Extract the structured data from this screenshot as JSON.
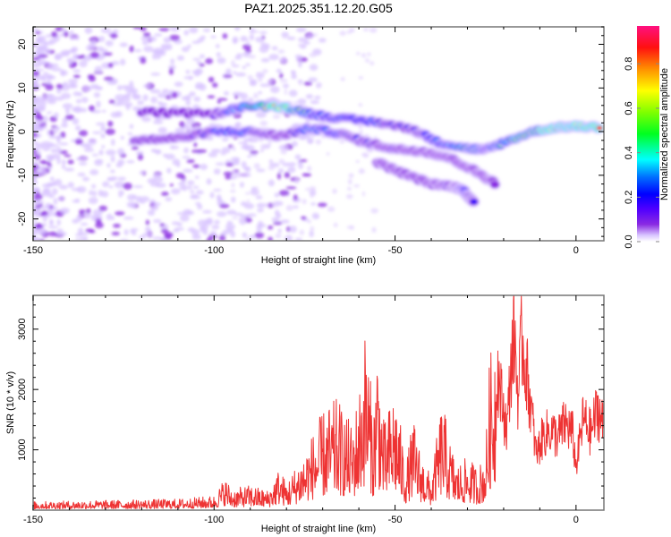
{
  "title": "PAZ1.2025.351.12.20.G05",
  "chart_data": [
    {
      "type": "heatmap",
      "name": "spectrogram",
      "title": "PAZ1.2025.351.12.20.G05",
      "xlabel": "Height of straight line (km)",
      "ylabel": "Frequency (Hz)",
      "xlim": [
        -150,
        7.7
      ],
      "ylim": [
        -25,
        24
      ],
      "xticks": [
        -150,
        -100,
        -50,
        0
      ],
      "xtick_labels": [
        "-150",
        "-100",
        "-50",
        "0"
      ],
      "yticks": [
        -20,
        -10,
        0,
        10,
        20
      ],
      "ytick_labels": [
        "-20",
        "-10",
        "0",
        "10",
        "20"
      ],
      "colorbar": {
        "label": "Normalized spectral amplitude",
        "range": [
          0.0,
          0.97
        ],
        "ticks": [
          0.0,
          0.2,
          0.4,
          0.6,
          0.8
        ],
        "tick_labels": [
          "0.0",
          "0.2",
          "0.4",
          "0.6",
          "0.8"
        ],
        "colors": [
          "#ffffff",
          "#e6d5ff",
          "#8a2be2",
          "#5000ff",
          "#0000ff",
          "#0080ff",
          "#00ffff",
          "#00ff40",
          "#60ff00",
          "#ffff00",
          "#ff9000",
          "#ff2000",
          "#ff1060"
        ]
      },
      "features": [
        {
          "name": "main-trace",
          "points": [
            [
              -120,
              4.5
            ],
            [
              -100,
              4.0
            ],
            [
              -92,
              5.8
            ],
            [
              -81,
              5.7
            ],
            [
              -73,
              4.0
            ],
            [
              -65,
              3.0
            ],
            [
              -55,
              2.2
            ],
            [
              -45,
              0.5
            ],
            [
              -38,
              -2.5
            ],
            [
              -30,
              -3.8
            ],
            [
              -25,
              -4.2
            ],
            [
              -20,
              -2.5
            ],
            [
              -12,
              0.0
            ],
            [
              -5,
              1.0
            ],
            [
              0,
              1.2
            ],
            [
              7,
              1.0
            ]
          ],
          "amplitudes": [
            0.15,
            0.2,
            0.45,
            0.9,
            0.35,
            0.3,
            0.3,
            0.25,
            0.35,
            0.55,
            0.4,
            0.55,
            0.7,
            0.9,
            0.92,
            0.85
          ]
        },
        {
          "name": "lower-trace",
          "points": [
            [
              -122,
              -2.0
            ],
            [
              -110,
              -1.5
            ],
            [
              -100,
              0.0
            ],
            [
              -90,
              0.0
            ],
            [
              -82,
              -1.0
            ],
            [
              -73,
              0.8
            ],
            [
              -65,
              -0.5
            ],
            [
              -58,
              -2.5
            ],
            [
              -50,
              -4.0
            ],
            [
              -42,
              -4.5
            ],
            [
              -35,
              -6.0
            ],
            [
              -28,
              -9.0
            ],
            [
              -22,
              -12.0
            ]
          ],
          "amplitudes": [
            0.1,
            0.15,
            0.3,
            0.3,
            0.15,
            0.4,
            0.3,
            0.25,
            0.2,
            0.15,
            0.1,
            0.1,
            0.05
          ]
        },
        {
          "name": "secondary-trace",
          "points": [
            [
              -55,
              -7.0
            ],
            [
              -48,
              -9.5
            ],
            [
              -40,
              -12.0
            ],
            [
              -34,
              -12.5
            ],
            [
              -31,
              -13.5
            ],
            [
              -28,
              -16.5
            ]
          ],
          "amplitudes": [
            0.1,
            0.1,
            0.15,
            0.25,
            0.35,
            0.2
          ]
        }
      ]
    },
    {
      "type": "line",
      "name": "snr",
      "xlabel": "Height of straight line (km)",
      "ylabel": "SNR (10 * v/v)",
      "xlim": [
        -150,
        7.7
      ],
      "ylim": [
        0,
        3560
      ],
      "xticks": [
        -150,
        -100,
        -50,
        0
      ],
      "xtick_labels": [
        "-150",
        "-100",
        "-50",
        "0"
      ],
      "yticks": [
        1000,
        2000,
        3000
      ],
      "ytick_labels": [
        "1000",
        "2000",
        "3000"
      ],
      "color": "#ee3333",
      "series": [
        {
          "name": "SNR envelope",
          "x": [
            -150,
            -140,
            -130,
            -120,
            -110,
            -100,
            -97,
            -95,
            -90,
            -85,
            -82,
            -80,
            -75,
            -70,
            -66,
            -62,
            -60,
            -58,
            -56,
            -55,
            -53,
            -50,
            -47,
            -45,
            -43,
            -40,
            -37,
            -35,
            -33,
            -30,
            -27,
            -25,
            -24,
            -22,
            -20,
            -19,
            -18,
            -17,
            -16,
            -15,
            -13,
            -11,
            -9,
            -7,
            -5,
            -3,
            -1,
            0,
            2,
            4,
            6,
            7.7
          ],
          "y": [
            130,
            140,
            150,
            160,
            170,
            220,
            500,
            320,
            380,
            300,
            650,
            420,
            900,
            1500,
            1700,
            1300,
            1800,
            2900,
            1400,
            2700,
            1300,
            1900,
            700,
            1400,
            900,
            500,
            1700,
            1100,
            700,
            800,
            650,
            900,
            2200,
            3050,
            2000,
            1700,
            3000,
            3600,
            2300,
            3550,
            2500,
            1150,
            1550,
            1650,
            1500,
            1800,
            1600,
            900,
            1900,
            1600,
            2100,
            1700
          ]
        }
      ]
    }
  ]
}
